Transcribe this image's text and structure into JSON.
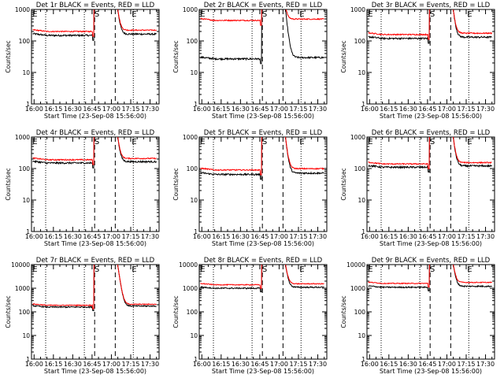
{
  "chart_data": {
    "type": "line",
    "x_tick_labels": [
      "16:00",
      "16:15",
      "16:30",
      "16:45",
      "17:00",
      "17:15",
      "17:30"
    ],
    "x_ticks_minutes": [
      0,
      15,
      30,
      45,
      60,
      75,
      90
    ],
    "xlim_minutes": [
      -2,
      97
    ],
    "xlabel": "Start Time (23-Sep-08 15:56:00)",
    "ylabel": "Counts/sec",
    "scale": "log",
    "vlines_dotted_minutes": [
      9,
      39,
      77
    ],
    "vlines_dashed_minutes": [
      47,
      63
    ],
    "series_colors": {
      "events": "#000000",
      "lld": "#ff0000"
    },
    "markers": {
      "S": 48,
      "E_left": 0,
      "E_right": 77
    },
    "panels": [
      {
        "title": "Det 1r BLACK = Events, RED = LLD",
        "y_tick_labels": [
          "1",
          "10",
          "100",
          "1000"
        ],
        "ylim": [
          1,
          1000
        ],
        "events_base": 150,
        "lld_base": 200
      },
      {
        "title": "Det 2r BLACK = Events, RED = LLD",
        "y_tick_labels": [
          "1",
          "10",
          "100",
          "1000"
        ],
        "ylim": [
          1,
          1000
        ],
        "events_base": 27,
        "lld_base": 450
      },
      {
        "title": "Det 3r BLACK = Events, RED = LLD",
        "y_tick_labels": [
          "1",
          "10",
          "100",
          "1000"
        ],
        "ylim": [
          1,
          1000
        ],
        "events_base": 120,
        "lld_base": 160
      },
      {
        "title": "Det 4r BLACK = Events, RED = LLD",
        "y_tick_labels": [
          "1",
          "10",
          "100",
          "1000"
        ],
        "ylim": [
          1,
          1000
        ],
        "events_base": 150,
        "lld_base": 190
      },
      {
        "title": "Det 5r BLACK = Events, RED = LLD",
        "y_tick_labels": [
          "1",
          "10",
          "100",
          "1000"
        ],
        "ylim": [
          1,
          1000
        ],
        "events_base": 65,
        "lld_base": 90
      },
      {
        "title": "Det 6r BLACK = Events, RED = LLD",
        "y_tick_labels": [
          "1",
          "10",
          "100",
          "1000"
        ],
        "ylim": [
          1,
          1000
        ],
        "events_base": 110,
        "lld_base": 140
      },
      {
        "title": "Det 7r BLACK = Events, RED = LLD",
        "y_tick_labels": [
          "1",
          "10",
          "100",
          "1000",
          "10000"
        ],
        "ylim": [
          1,
          10000
        ],
        "events_base": 160,
        "lld_base": 190
      },
      {
        "title": "Det 8r BLACK = Events, RED = LLD",
        "y_tick_labels": [
          "1",
          "10",
          "100",
          "1000",
          "10000"
        ],
        "ylim": [
          1,
          10000
        ],
        "events_base": 1000,
        "lld_base": 1400
      },
      {
        "title": "Det 9r BLACK = Events, RED = LLD",
        "y_tick_labels": [
          "1",
          "10",
          "100",
          "1000",
          "10000"
        ],
        "ylim": [
          1,
          10000
        ],
        "events_base": 1100,
        "lld_base": 1600
      }
    ]
  }
}
